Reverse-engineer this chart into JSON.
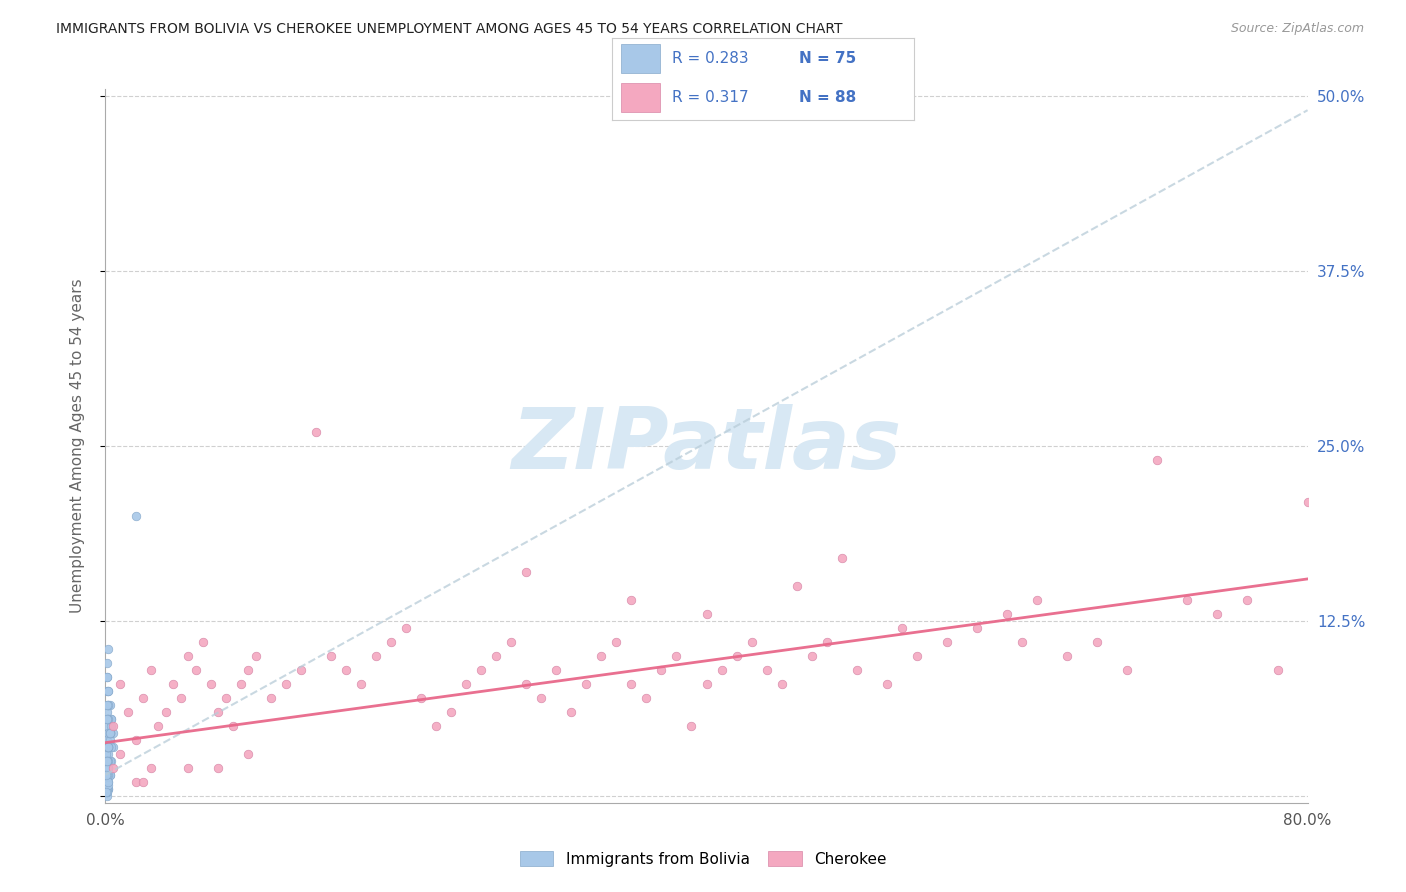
{
  "title": "IMMIGRANTS FROM BOLIVIA VS CHEROKEE UNEMPLOYMENT AMONG AGES 45 TO 54 YEARS CORRELATION CHART",
  "source": "Source: ZipAtlas.com",
  "ylabel": "Unemployment Among Ages 45 to 54 years",
  "legend_label_1": "Immigrants from Bolivia",
  "legend_label_2": "Cherokee",
  "R1": 0.283,
  "N1": 75,
  "R2": 0.317,
  "N2": 88,
  "xlim": [
    0.0,
    0.8
  ],
  "ylim": [
    -0.005,
    0.505
  ],
  "yticks": [
    0.0,
    0.125,
    0.25,
    0.375,
    0.5
  ],
  "ytick_labels": [
    "",
    "12.5%",
    "25.0%",
    "37.5%",
    "50.0%"
  ],
  "xticks": [
    0.0,
    0.1,
    0.2,
    0.3,
    0.4,
    0.5,
    0.6,
    0.7,
    0.8
  ],
  "xtick_labels": [
    "0.0%",
    "",
    "",
    "",
    "",
    "",
    "",
    "",
    "80.0%"
  ],
  "color_bolivia": "#a8c8e8",
  "color_cherokee": "#f4a8c0",
  "color_trend_bolivia": "#b8ccd8",
  "color_trend_cherokee": "#e8688a",
  "color_right_axis": "#4472c4",
  "watermark_text": "ZIPatlas",
  "watermark_color": "#d8e8f4",
  "bolivia_x": [
    0.0008,
    0.001,
    0.0012,
    0.0008,
    0.0015,
    0.002,
    0.003,
    0.0015,
    0.001,
    0.0006,
    0.003,
    0.004,
    0.005,
    0.002,
    0.0015,
    0.001,
    0.0005,
    0.003,
    0.004,
    0.001,
    0.001,
    0.002,
    0.0008,
    0.001,
    0.0015,
    0.003,
    0.004,
    0.005,
    0.002,
    0.0015,
    0.001,
    0.0005,
    0.0015,
    0.002,
    0.003,
    0.001,
    0.0008,
    0.0012,
    0.001,
    0.002,
    0.003,
    0.004,
    0.0015,
    0.001,
    0.0006,
    0.002,
    0.003,
    0.004,
    0.0015,
    0.001,
    0.0005,
    0.0015,
    0.002,
    0.001,
    0.0008,
    0.0015,
    0.002,
    0.003,
    0.0015,
    0.001,
    0.0005,
    0.0012,
    0.002,
    0.003,
    0.001,
    0.0015,
    0.002,
    0.001,
    0.0008,
    0.0015,
    0.002,
    0.003,
    0.001,
    0.0008,
    0.02
  ],
  "bolivia_y": [
    0.0,
    0.005,
    0.01,
    0.04,
    0.02,
    0.005,
    0.015,
    0.03,
    0.05,
    0.005,
    0.015,
    0.025,
    0.035,
    0.01,
    0.005,
    0.02,
    0.03,
    0.04,
    0.05,
    0.06,
    0.005,
    0.015,
    0.003,
    0.01,
    0.02,
    0.025,
    0.035,
    0.045,
    0.055,
    0.065,
    0.005,
    0.015,
    0.025,
    0.035,
    0.045,
    0.003,
    0.01,
    0.02,
    0.025,
    0.035,
    0.045,
    0.055,
    0.008,
    0.015,
    0.025,
    0.035,
    0.045,
    0.055,
    0.065,
    0.075,
    0.003,
    0.01,
    0.02,
    0.025,
    0.035,
    0.045,
    0.055,
    0.065,
    0.075,
    0.085,
    0.015,
    0.025,
    0.035,
    0.045,
    0.055,
    0.065,
    0.075,
    0.085,
    0.095,
    0.105,
    0.035,
    0.045,
    0.055,
    0.065,
    0.2
  ],
  "cherokee_x": [
    0.005,
    0.01,
    0.015,
    0.02,
    0.025,
    0.03,
    0.035,
    0.04,
    0.045,
    0.05,
    0.055,
    0.06,
    0.065,
    0.07,
    0.075,
    0.08,
    0.085,
    0.09,
    0.095,
    0.1,
    0.11,
    0.12,
    0.13,
    0.14,
    0.15,
    0.16,
    0.17,
    0.18,
    0.19,
    0.2,
    0.21,
    0.22,
    0.23,
    0.24,
    0.25,
    0.26,
    0.27,
    0.28,
    0.29,
    0.3,
    0.31,
    0.32,
    0.33,
    0.34,
    0.35,
    0.36,
    0.37,
    0.38,
    0.39,
    0.4,
    0.41,
    0.42,
    0.43,
    0.44,
    0.45,
    0.46,
    0.47,
    0.48,
    0.49,
    0.5,
    0.52,
    0.54,
    0.56,
    0.58,
    0.6,
    0.62,
    0.64,
    0.66,
    0.68,
    0.7,
    0.72,
    0.74,
    0.76,
    0.78,
    0.8,
    0.35,
    0.4,
    0.28,
    0.53,
    0.61,
    0.005,
    0.01,
    0.02,
    0.03,
    0.025,
    0.055,
    0.075,
    0.095
  ],
  "cherokee_y": [
    0.05,
    0.08,
    0.06,
    0.04,
    0.07,
    0.09,
    0.05,
    0.06,
    0.08,
    0.07,
    0.1,
    0.09,
    0.11,
    0.08,
    0.06,
    0.07,
    0.05,
    0.08,
    0.09,
    0.1,
    0.07,
    0.08,
    0.09,
    0.26,
    0.1,
    0.09,
    0.08,
    0.1,
    0.11,
    0.12,
    0.07,
    0.05,
    0.06,
    0.08,
    0.09,
    0.1,
    0.11,
    0.08,
    0.07,
    0.09,
    0.06,
    0.08,
    0.1,
    0.11,
    0.08,
    0.07,
    0.09,
    0.1,
    0.05,
    0.08,
    0.09,
    0.1,
    0.11,
    0.09,
    0.08,
    0.15,
    0.1,
    0.11,
    0.17,
    0.09,
    0.08,
    0.1,
    0.11,
    0.12,
    0.13,
    0.14,
    0.1,
    0.11,
    0.09,
    0.24,
    0.14,
    0.13,
    0.14,
    0.09,
    0.21,
    0.14,
    0.13,
    0.16,
    0.12,
    0.11,
    0.02,
    0.03,
    0.01,
    0.02,
    0.01,
    0.02,
    0.02,
    0.03
  ],
  "bolivia_trend_x": [
    0.0,
    0.8
  ],
  "bolivia_trend_y": [
    0.015,
    0.49
  ],
  "cherokee_trend_x": [
    0.0,
    0.8
  ],
  "cherokee_trend_y": [
    0.038,
    0.155
  ]
}
